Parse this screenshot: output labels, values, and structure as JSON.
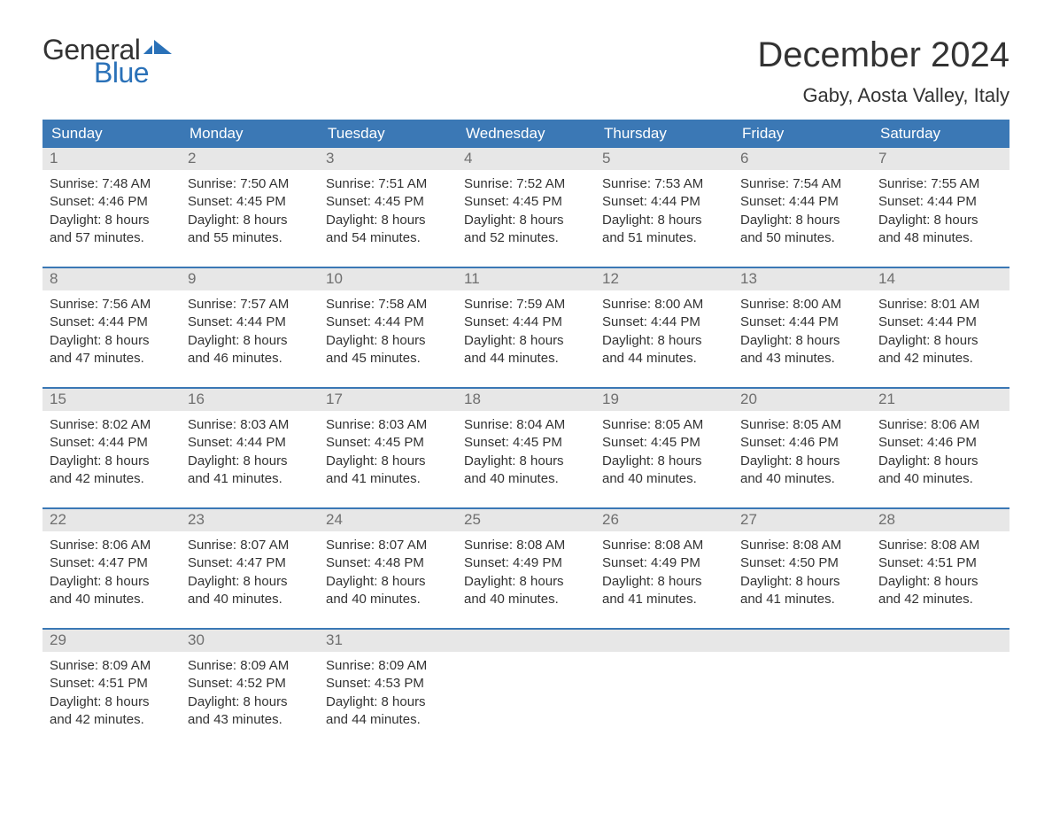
{
  "brand": {
    "word1": "General",
    "word2": "Blue",
    "word1_color": "#333333",
    "word2_color": "#2a71b8",
    "flag_color": "#2a71b8",
    "font_size_pt": 24
  },
  "title": {
    "month": "December 2024",
    "location": "Gaby, Aosta Valley, Italy",
    "month_fontsize_pt": 30,
    "location_fontsize_pt": 17,
    "text_color": "#333333"
  },
  "colors": {
    "header_bg": "#3b78b5",
    "header_text": "#ffffff",
    "daynum_bg": "#e7e7e7",
    "daynum_text": "#6f6f6f",
    "body_text": "#333333",
    "week_divider": "#3b78b5",
    "page_bg": "#ffffff"
  },
  "typography": {
    "body_fontsize_pt": 11,
    "daynum_fontsize_pt": 13,
    "header_fontsize_pt": 13,
    "font_family": "Arial"
  },
  "labels": {
    "sunrise": "Sunrise:",
    "sunset": "Sunset:",
    "daylight": "Daylight:"
  },
  "day_headers": [
    "Sunday",
    "Monday",
    "Tuesday",
    "Wednesday",
    "Thursday",
    "Friday",
    "Saturday"
  ],
  "weeks": [
    [
      {
        "n": "1",
        "sunrise": "7:48 AM",
        "sunset": "4:46 PM",
        "daylight1": "8 hours",
        "daylight2": "and 57 minutes."
      },
      {
        "n": "2",
        "sunrise": "7:50 AM",
        "sunset": "4:45 PM",
        "daylight1": "8 hours",
        "daylight2": "and 55 minutes."
      },
      {
        "n": "3",
        "sunrise": "7:51 AM",
        "sunset": "4:45 PM",
        "daylight1": "8 hours",
        "daylight2": "and 54 minutes."
      },
      {
        "n": "4",
        "sunrise": "7:52 AM",
        "sunset": "4:45 PM",
        "daylight1": "8 hours",
        "daylight2": "and 52 minutes."
      },
      {
        "n": "5",
        "sunrise": "7:53 AM",
        "sunset": "4:44 PM",
        "daylight1": "8 hours",
        "daylight2": "and 51 minutes."
      },
      {
        "n": "6",
        "sunrise": "7:54 AM",
        "sunset": "4:44 PM",
        "daylight1": "8 hours",
        "daylight2": "and 50 minutes."
      },
      {
        "n": "7",
        "sunrise": "7:55 AM",
        "sunset": "4:44 PM",
        "daylight1": "8 hours",
        "daylight2": "and 48 minutes."
      }
    ],
    [
      {
        "n": "8",
        "sunrise": "7:56 AM",
        "sunset": "4:44 PM",
        "daylight1": "8 hours",
        "daylight2": "and 47 minutes."
      },
      {
        "n": "9",
        "sunrise": "7:57 AM",
        "sunset": "4:44 PM",
        "daylight1": "8 hours",
        "daylight2": "and 46 minutes."
      },
      {
        "n": "10",
        "sunrise": "7:58 AM",
        "sunset": "4:44 PM",
        "daylight1": "8 hours",
        "daylight2": "and 45 minutes."
      },
      {
        "n": "11",
        "sunrise": "7:59 AM",
        "sunset": "4:44 PM",
        "daylight1": "8 hours",
        "daylight2": "and 44 minutes."
      },
      {
        "n": "12",
        "sunrise": "8:00 AM",
        "sunset": "4:44 PM",
        "daylight1": "8 hours",
        "daylight2": "and 44 minutes."
      },
      {
        "n": "13",
        "sunrise": "8:00 AM",
        "sunset": "4:44 PM",
        "daylight1": "8 hours",
        "daylight2": "and 43 minutes."
      },
      {
        "n": "14",
        "sunrise": "8:01 AM",
        "sunset": "4:44 PM",
        "daylight1": "8 hours",
        "daylight2": "and 42 minutes."
      }
    ],
    [
      {
        "n": "15",
        "sunrise": "8:02 AM",
        "sunset": "4:44 PM",
        "daylight1": "8 hours",
        "daylight2": "and 42 minutes."
      },
      {
        "n": "16",
        "sunrise": "8:03 AM",
        "sunset": "4:44 PM",
        "daylight1": "8 hours",
        "daylight2": "and 41 minutes."
      },
      {
        "n": "17",
        "sunrise": "8:03 AM",
        "sunset": "4:45 PM",
        "daylight1": "8 hours",
        "daylight2": "and 41 minutes."
      },
      {
        "n": "18",
        "sunrise": "8:04 AM",
        "sunset": "4:45 PM",
        "daylight1": "8 hours",
        "daylight2": "and 40 minutes."
      },
      {
        "n": "19",
        "sunrise": "8:05 AM",
        "sunset": "4:45 PM",
        "daylight1": "8 hours",
        "daylight2": "and 40 minutes."
      },
      {
        "n": "20",
        "sunrise": "8:05 AM",
        "sunset": "4:46 PM",
        "daylight1": "8 hours",
        "daylight2": "and 40 minutes."
      },
      {
        "n": "21",
        "sunrise": "8:06 AM",
        "sunset": "4:46 PM",
        "daylight1": "8 hours",
        "daylight2": "and 40 minutes."
      }
    ],
    [
      {
        "n": "22",
        "sunrise": "8:06 AM",
        "sunset": "4:47 PM",
        "daylight1": "8 hours",
        "daylight2": "and 40 minutes."
      },
      {
        "n": "23",
        "sunrise": "8:07 AM",
        "sunset": "4:47 PM",
        "daylight1": "8 hours",
        "daylight2": "and 40 minutes."
      },
      {
        "n": "24",
        "sunrise": "8:07 AM",
        "sunset": "4:48 PM",
        "daylight1": "8 hours",
        "daylight2": "and 40 minutes."
      },
      {
        "n": "25",
        "sunrise": "8:08 AM",
        "sunset": "4:49 PM",
        "daylight1": "8 hours",
        "daylight2": "and 40 minutes."
      },
      {
        "n": "26",
        "sunrise": "8:08 AM",
        "sunset": "4:49 PM",
        "daylight1": "8 hours",
        "daylight2": "and 41 minutes."
      },
      {
        "n": "27",
        "sunrise": "8:08 AM",
        "sunset": "4:50 PM",
        "daylight1": "8 hours",
        "daylight2": "and 41 minutes."
      },
      {
        "n": "28",
        "sunrise": "8:08 AM",
        "sunset": "4:51 PM",
        "daylight1": "8 hours",
        "daylight2": "and 42 minutes."
      }
    ],
    [
      {
        "n": "29",
        "sunrise": "8:09 AM",
        "sunset": "4:51 PM",
        "daylight1": "8 hours",
        "daylight2": "and 42 minutes."
      },
      {
        "n": "30",
        "sunrise": "8:09 AM",
        "sunset": "4:52 PM",
        "daylight1": "8 hours",
        "daylight2": "and 43 minutes."
      },
      {
        "n": "31",
        "sunrise": "8:09 AM",
        "sunset": "4:53 PM",
        "daylight1": "8 hours",
        "daylight2": "and 44 minutes."
      },
      null,
      null,
      null,
      null
    ]
  ]
}
